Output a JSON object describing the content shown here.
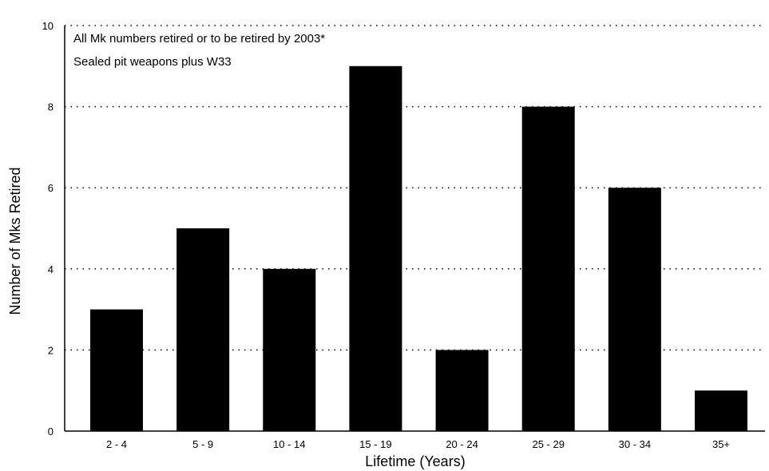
{
  "chart_data": {
    "type": "bar",
    "title": "",
    "annotations": [
      "All Mk numbers retired or to be retired by 2003*",
      "Sealed pit weapons plus W33"
    ],
    "xlabel": "Lifetime (Years)",
    "ylabel": "Number of Mks Retired",
    "categories": [
      "2 - 4",
      "5 - 9",
      "10 - 14",
      "15 - 19",
      "20 - 24",
      "25 - 29",
      "30 - 34",
      "35+"
    ],
    "values": [
      3,
      5,
      4,
      9,
      2,
      8,
      6,
      1
    ],
    "ylim": [
      0,
      10
    ],
    "yticks": [
      "0",
      "2",
      "4",
      "6",
      "8",
      "10"
    ],
    "grid": "dotted horizontal at each tick",
    "legend": "none",
    "colors": {
      "bar": "#000000",
      "axis": "#000000",
      "grid": "#000000"
    }
  }
}
